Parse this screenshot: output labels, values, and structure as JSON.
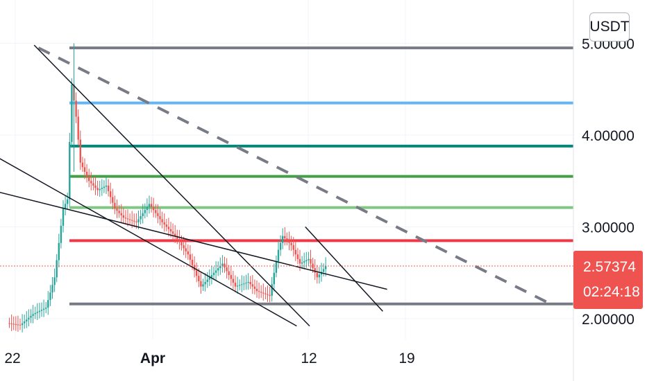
{
  "currency": "USDT",
  "price_tag": {
    "price": "2.57374",
    "countdown": "02:24:18",
    "color": "#ef5350"
  },
  "chart_data": {
    "type": "candlestick",
    "title": "",
    "xlabel": "",
    "ylabel": "",
    "ylim": [
      1.92,
      5.25
    ],
    "y_ticks": [
      "2.00000",
      "3.00000",
      "4.00000",
      "5.00000"
    ],
    "x_ticks": [
      "22",
      "Apr",
      "12",
      "19"
    ],
    "current_price": 2.57374,
    "price_series_approx": [
      {
        "t": 0,
        "p": 1.95
      },
      {
        "t": 3,
        "p": 1.93
      },
      {
        "t": 6,
        "p": 2.05
      },
      {
        "t": 9,
        "p": 2.12
      },
      {
        "t": 11,
        "p": 2.45
      },
      {
        "t": 13,
        "p": 3.2
      },
      {
        "t": 14,
        "p": 3.3
      },
      {
        "t": 15,
        "p": 4.55
      },
      {
        "t": 16,
        "p": 4.2
      },
      {
        "t": 17,
        "p": 3.7
      },
      {
        "t": 19,
        "p": 3.5
      },
      {
        "t": 21,
        "p": 3.4
      },
      {
        "t": 23,
        "p": 3.45
      },
      {
        "t": 25,
        "p": 3.2
      },
      {
        "t": 27,
        "p": 3.1
      },
      {
        "t": 30,
        "p": 3.05
      },
      {
        "t": 33,
        "p": 3.25
      },
      {
        "t": 36,
        "p": 3.05
      },
      {
        "t": 39,
        "p": 2.9
      },
      {
        "t": 42,
        "p": 2.7
      },
      {
        "t": 45,
        "p": 2.35
      },
      {
        "t": 48,
        "p": 2.5
      },
      {
        "t": 50,
        "p": 2.6
      },
      {
        "t": 53,
        "p": 2.35
      },
      {
        "t": 56,
        "p": 2.4
      },
      {
        "t": 58,
        "p": 2.3
      },
      {
        "t": 61,
        "p": 2.25
      },
      {
        "t": 63,
        "p": 2.75
      },
      {
        "t": 64,
        "p": 2.9
      },
      {
        "t": 66,
        "p": 2.8
      },
      {
        "t": 68,
        "p": 2.6
      },
      {
        "t": 70,
        "p": 2.65
      },
      {
        "t": 72,
        "p": 2.45
      },
      {
        "t": 74,
        "p": 2.57
      }
    ],
    "horizontal_levels": [
      {
        "price": 4.95,
        "color": "#787b86"
      },
      {
        "price": 4.35,
        "color": "#64b5f6"
      },
      {
        "price": 3.88,
        "color": "#00897b"
      },
      {
        "price": 3.55,
        "color": "#43a047"
      },
      {
        "price": 3.21,
        "color": "#81c784"
      },
      {
        "price": 2.85,
        "color": "#f23645"
      },
      {
        "price": 2.16,
        "color": "#787b86"
      }
    ],
    "dashed_trendline": {
      "color": "#787b86",
      "from": {
        "t": 7,
        "p": 4.95
      },
      "to": {
        "t": 126,
        "p": 2.16
      }
    },
    "trendlines": [
      {
        "from": {
          "t": 6,
          "p": 4.98
        },
        "to": {
          "t": 70,
          "p": 1.92
        }
      },
      {
        "from": {
          "t": -6,
          "p": 3.85
        },
        "to": {
          "t": 67,
          "p": 1.92
        }
      },
      {
        "from": {
          "t": -4,
          "p": 3.4
        },
        "to": {
          "t": 88,
          "p": 2.32
        }
      },
      {
        "from": {
          "t": 69,
          "p": 3.0
        },
        "to": {
          "t": 87,
          "p": 2.08
        }
      }
    ]
  }
}
